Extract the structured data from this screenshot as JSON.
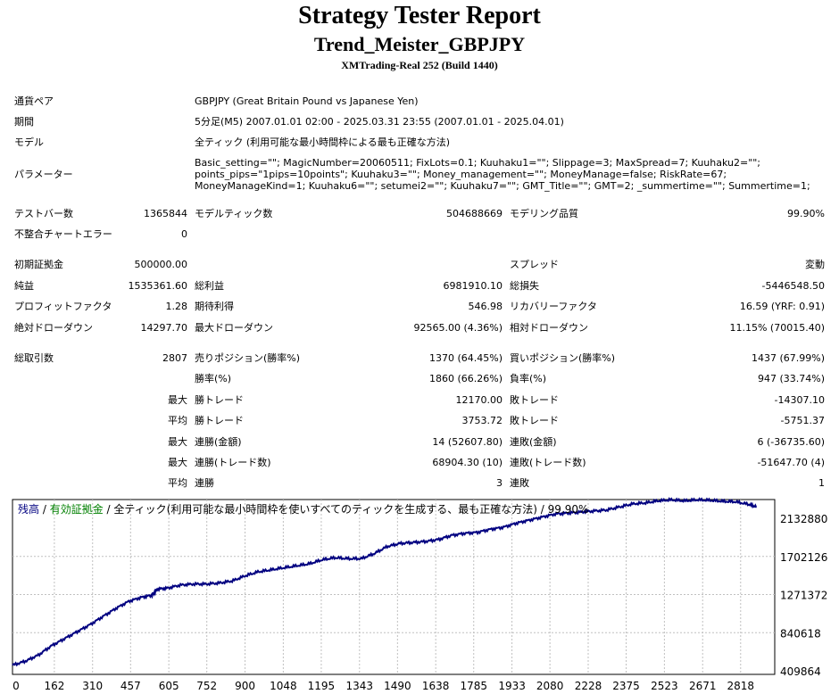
{
  "report": {
    "title": "Strategy Tester Report",
    "expert": "Trend_Meister_GBPJPY",
    "server": "XMTrading-Real 252 (Build 1440)"
  },
  "info": {
    "symbol_label": "通貨ペア",
    "symbol_value": "GBPJPY (Great Britain Pound vs Japanese Yen)",
    "period_label": "期間",
    "period_value": "5分足(M5) 2007.01.01 02:00 - 2025.03.31 23:55 (2007.01.01 - 2025.04.01)",
    "model_label": "モデル",
    "model_value": "全ティック (利用可能な最小時間枠による最も正確な方法)",
    "params_label": "パラメーター",
    "params_value": "Basic_setting=\"\"; MagicNumber=20060511; FixLots=0.1; Kuuhaku1=\"\"; Slippage=3; MaxSpread=7; Kuuhaku2=\"\"; points_pips=\"1pips=10points\"; Kuuhaku3=\"\"; Money_management=\"\"; MoneyManage=false; RiskRate=67; MoneyManageKind=1; Kuuhaku6=\"\"; setumei2=\"\"; Kuuhaku7=\"\"; GMT_Title=\"\"; GMT=2; _summertime=\"\"; Summertime=1;"
  },
  "stats": {
    "bars_label": "テストバー数",
    "bars_value": "1365844",
    "ticks_label": "モデルティック数",
    "ticks_value": "504688669",
    "quality_label": "モデリング品質",
    "quality_value": "99.90%",
    "mismatch_label": "不整合チャートエラー",
    "mismatch_value": "0",
    "deposit_label": "初期証拠金",
    "deposit_value": "500000.00",
    "spread_label": "スプレッド",
    "spread_value": "変動",
    "net_label": "純益",
    "net_value": "1535361.60",
    "gross_profit_label": "総利益",
    "gross_profit_value": "6981910.10",
    "gross_loss_label": "総損失",
    "gross_loss_value": "-5446548.50",
    "pf_label": "プロフィットファクタ",
    "pf_value": "1.28",
    "payoff_label": "期待利得",
    "payoff_value": "546.98",
    "recovery_label": "リカバリーファクタ",
    "recovery_value": "16.59 (YRF: 0.91)",
    "abs_dd_label": "絶対ドローダウン",
    "abs_dd_value": "14297.70",
    "max_dd_label": "最大ドローダウン",
    "max_dd_value": "92565.00 (4.36%)",
    "rel_dd_label": "相対ドローダウン",
    "rel_dd_value": "11.15% (70015.40)",
    "total_trades_label": "総取引数",
    "total_trades_value": "2807",
    "short_label": "売りポジション(勝率%)",
    "short_value": "1370 (64.45%)",
    "long_label": "買いポジション(勝率%)",
    "long_value": "1437 (67.99%)",
    "win_rate_label": "勝率(%)",
    "win_rate_value": "1860 (66.26%)",
    "loss_rate_label": "負率(%)",
    "loss_rate_value": "947 (33.74%)",
    "max_label": "最大",
    "avg_label": "平均",
    "largest_win_label": "勝トレード",
    "largest_win_value": "12170.00",
    "largest_loss_label": "敗トレード",
    "largest_loss_value": "-14307.10",
    "avg_win_label": "勝トレード",
    "avg_win_value": "3753.72",
    "avg_loss_label": "敗トレード",
    "avg_loss_value": "-5751.37",
    "max_consec_win_money_label": "連勝(金額)",
    "max_consec_win_money_value": "14 (52607.80)",
    "max_consec_loss_money_label": "連敗(金額)",
    "max_consec_loss_money_value": "6 (-36735.60)",
    "max_consec_win_trades_label": "連勝(トレード数)",
    "max_consec_win_trades_value": "68904.30 (10)",
    "max_consec_loss_trades_label": "連敗(トレード数)",
    "max_consec_loss_trades_value": "-51647.70 (4)",
    "avg_consec_win_label": "連勝",
    "avg_consec_win_value": "3",
    "avg_consec_loss_label": "連敗",
    "avg_consec_loss_value": "1"
  },
  "chart_data": {
    "type": "line",
    "legend": {
      "balance": "残高",
      "sep1": " / ",
      "equity": "有効証拠金",
      "rest": " / 全ティック(利用可能な最小時間枠を使いすべてのティックを生成する、最も正確な方法) / 99.90%"
    },
    "colors": {
      "balance": "#000080",
      "equity": "#008000",
      "grid": "#c0c0c0"
    },
    "x_ticks": [
      "0",
      "162",
      "310",
      "457",
      "605",
      "752",
      "900",
      "1048",
      "1195",
      "1343",
      "1490",
      "1638",
      "1785",
      "1933",
      "2080",
      "2228",
      "2375",
      "2523",
      "2671",
      "2818"
    ],
    "y_ticks": [
      "2132880",
      "1702126",
      "1271372",
      "840618",
      "409864"
    ],
    "xlim": [
      0,
      2950
    ],
    "ylim": [
      409864,
      2132880
    ],
    "series": [
      {
        "x": [
          0,
          50,
          100,
          150,
          200,
          250,
          300,
          350,
          400,
          450,
          500,
          540,
          560,
          600,
          650,
          700,
          750,
          800,
          850,
          900,
          950,
          1000,
          1050,
          1100,
          1150,
          1200,
          1250,
          1300,
          1350,
          1400,
          1450,
          1500,
          1550,
          1600,
          1650,
          1700,
          1750,
          1800,
          1850,
          1900,
          1950,
          2000,
          2050,
          2100,
          2150,
          2200,
          2250,
          2300,
          2350,
          2400,
          2450,
          2500,
          2550,
          2600,
          2650,
          2700,
          2750,
          2800,
          2850,
          2880
        ],
        "y": [
          500000,
          540000,
          600000,
          690000,
          760000,
          830000,
          900000,
          980000,
          1060000,
          1130000,
          1170000,
          1190000,
          1250000,
          1260000,
          1290000,
          1300000,
          1300000,
          1310000,
          1330000,
          1380000,
          1420000,
          1440000,
          1460000,
          1480000,
          1500000,
          1540000,
          1560000,
          1550000,
          1550000,
          1600000,
          1670000,
          1700000,
          1710000,
          1720000,
          1740000,
          1780000,
          1800000,
          1810000,
          1840000,
          1860000,
          1900000,
          1930000,
          1960000,
          1990000,
          2000000,
          2010000,
          2020000,
          2030000,
          2060000,
          2090000,
          2100000,
          2120000,
          2130000,
          2120000,
          2130000,
          2125000,
          2115000,
          2110000,
          2085000,
          2060000
        ]
      }
    ]
  }
}
